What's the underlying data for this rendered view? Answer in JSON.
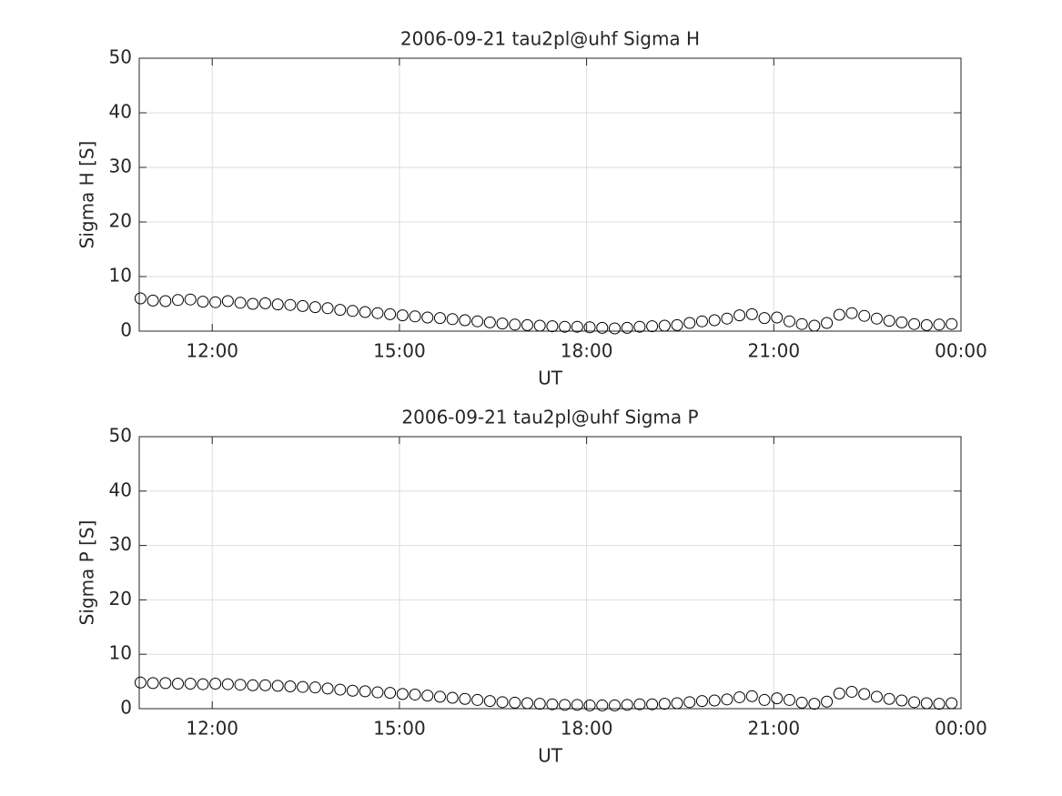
{
  "chart_data": [
    {
      "type": "scatter",
      "title": "2006-09-21  tau2pl@uhf Sigma H",
      "x_label": "UT",
      "y_label": "Sigma H [S]",
      "xlim": [
        10.83,
        24
      ],
      "xticks": [
        {
          "value": 12,
          "label": "12:00"
        },
        {
          "value": 15,
          "label": "15:00"
        },
        {
          "value": 18,
          "label": "18:00"
        },
        {
          "value": 21,
          "label": "21:00"
        },
        {
          "value": 24,
          "label": "00:00"
        }
      ],
      "ylim": [
        0,
        50
      ],
      "yticks": [
        0,
        10,
        20,
        30,
        40,
        50
      ],
      "grid": true,
      "color": "#000000",
      "x": [
        10.85,
        11.05,
        11.25,
        11.45,
        11.65,
        11.85,
        12.05,
        12.25,
        12.45,
        12.65,
        12.85,
        13.05,
        13.25,
        13.45,
        13.65,
        13.85,
        14.05,
        14.25,
        14.45,
        14.65,
        14.85,
        15.05,
        15.25,
        15.45,
        15.65,
        15.85,
        16.05,
        16.25,
        16.45,
        16.65,
        16.85,
        17.05,
        17.25,
        17.45,
        17.65,
        17.85,
        18.05,
        18.25,
        18.45,
        18.65,
        18.85,
        19.05,
        19.25,
        19.45,
        19.65,
        19.85,
        20.05,
        20.25,
        20.45,
        20.65,
        20.85,
        21.05,
        21.25,
        21.45,
        21.65,
        21.85,
        22.05,
        22.25,
        22.45,
        22.65,
        22.85,
        23.05,
        23.25,
        23.45,
        23.65,
        23.85
      ],
      "values": [
        6.0,
        5.6,
        5.5,
        5.7,
        5.8,
        5.4,
        5.3,
        5.5,
        5.2,
        5.0,
        5.1,
        4.9,
        4.8,
        4.6,
        4.4,
        4.2,
        3.9,
        3.7,
        3.5,
        3.3,
        3.1,
        2.9,
        2.7,
        2.5,
        2.4,
        2.2,
        2.0,
        1.8,
        1.6,
        1.4,
        1.2,
        1.1,
        1.0,
        0.9,
        0.8,
        0.8,
        0.7,
        0.6,
        0.5,
        0.6,
        0.8,
        0.9,
        1.0,
        1.1,
        1.5,
        1.8,
        2.0,
        2.3,
        2.9,
        3.1,
        2.4,
        2.5,
        1.8,
        1.3,
        1.0,
        1.5,
        3.0,
        3.3,
        2.8,
        2.3,
        1.9,
        1.6,
        1.3,
        1.1,
        1.2,
        1.3
      ]
    },
    {
      "type": "scatter",
      "title": "2006-09-21  tau2pl@uhf Sigma P",
      "x_label": "UT",
      "y_label": "Sigma P [S]",
      "xlim": [
        10.83,
        24
      ],
      "xticks": [
        {
          "value": 12,
          "label": "12:00"
        },
        {
          "value": 15,
          "label": "15:00"
        },
        {
          "value": 18,
          "label": "18:00"
        },
        {
          "value": 21,
          "label": "21:00"
        },
        {
          "value": 24,
          "label": "00:00"
        }
      ],
      "ylim": [
        0,
        50
      ],
      "yticks": [
        0,
        10,
        20,
        30,
        40,
        50
      ],
      "grid": true,
      "color": "#000000",
      "x": [
        10.85,
        11.05,
        11.25,
        11.45,
        11.65,
        11.85,
        12.05,
        12.25,
        12.45,
        12.65,
        12.85,
        13.05,
        13.25,
        13.45,
        13.65,
        13.85,
        14.05,
        14.25,
        14.45,
        14.65,
        14.85,
        15.05,
        15.25,
        15.45,
        15.65,
        15.85,
        16.05,
        16.25,
        16.45,
        16.65,
        16.85,
        17.05,
        17.25,
        17.45,
        17.65,
        17.85,
        18.05,
        18.25,
        18.45,
        18.65,
        18.85,
        19.05,
        19.25,
        19.45,
        19.65,
        19.85,
        20.05,
        20.25,
        20.45,
        20.65,
        20.85,
        21.05,
        21.25,
        21.45,
        21.65,
        21.85,
        22.05,
        22.25,
        22.45,
        22.65,
        22.85,
        23.05,
        23.25,
        23.45,
        23.65,
        23.85
      ],
      "values": [
        4.8,
        4.7,
        4.7,
        4.6,
        4.6,
        4.5,
        4.6,
        4.5,
        4.4,
        4.3,
        4.3,
        4.2,
        4.1,
        4.0,
        3.9,
        3.7,
        3.5,
        3.3,
        3.2,
        3.0,
        2.9,
        2.7,
        2.6,
        2.4,
        2.2,
        2.0,
        1.8,
        1.6,
        1.4,
        1.2,
        1.1,
        1.0,
        0.9,
        0.8,
        0.7,
        0.7,
        0.6,
        0.6,
        0.6,
        0.7,
        0.8,
        0.8,
        0.9,
        1.0,
        1.2,
        1.4,
        1.5,
        1.7,
        2.1,
        2.3,
        1.6,
        1.9,
        1.6,
        1.1,
        0.9,
        1.3,
        2.8,
        3.1,
        2.7,
        2.2,
        1.8,
        1.5,
        1.2,
        1.0,
        0.9,
        1.0
      ]
    }
  ]
}
